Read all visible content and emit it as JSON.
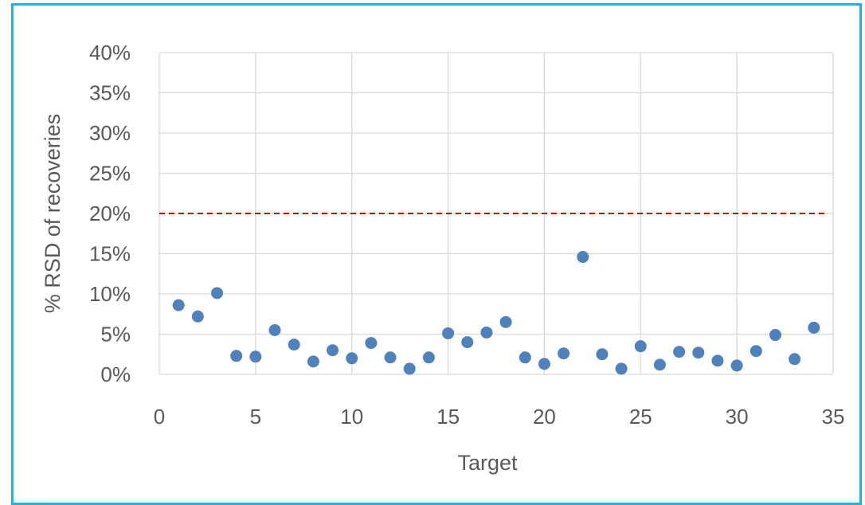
{
  "chart_data": {
    "type": "scatter",
    "title": "",
    "xlabel": "Target",
    "ylabel": "% RSD of recoveries",
    "xlim": [
      0,
      35
    ],
    "ylim": [
      0,
      0.4
    ],
    "x_ticks": [
      0,
      5,
      10,
      15,
      20,
      25,
      30,
      35
    ],
    "y_ticks": [
      0,
      0.05,
      0.1,
      0.15,
      0.2,
      0.25,
      0.3,
      0.35,
      0.4
    ],
    "x_tick_labels": [
      "0",
      "5",
      "10",
      "15",
      "20",
      "25",
      "30",
      "35"
    ],
    "y_tick_labels": [
      "0%",
      "5%",
      "10%",
      "15%",
      "20%",
      "25%",
      "30%",
      "35%",
      "40%"
    ],
    "grid": true,
    "marker_color": "#4f81bd",
    "threshold": {
      "value": 0.2,
      "color": "#c00000",
      "style": "dashed"
    },
    "series": [
      {
        "x": [
          1,
          2,
          3,
          4,
          5,
          6,
          7,
          8,
          9,
          10,
          11,
          12,
          13,
          14,
          15,
          16,
          17,
          18,
          19,
          20,
          21,
          22,
          23,
          24,
          25,
          26,
          27,
          28,
          29,
          30,
          31,
          32,
          33,
          34
        ],
        "values": [
          0.086,
          0.072,
          0.101,
          0.023,
          0.022,
          0.055,
          0.037,
          0.016,
          0.03,
          0.02,
          0.039,
          0.021,
          0.007,
          0.021,
          0.051,
          0.04,
          0.052,
          0.065,
          0.021,
          0.013,
          0.026,
          0.146,
          0.025,
          0.007,
          0.035,
          0.012,
          0.028,
          0.027,
          0.017,
          0.011,
          0.029,
          0.049,
          0.019,
          0.058
        ]
      }
    ]
  }
}
